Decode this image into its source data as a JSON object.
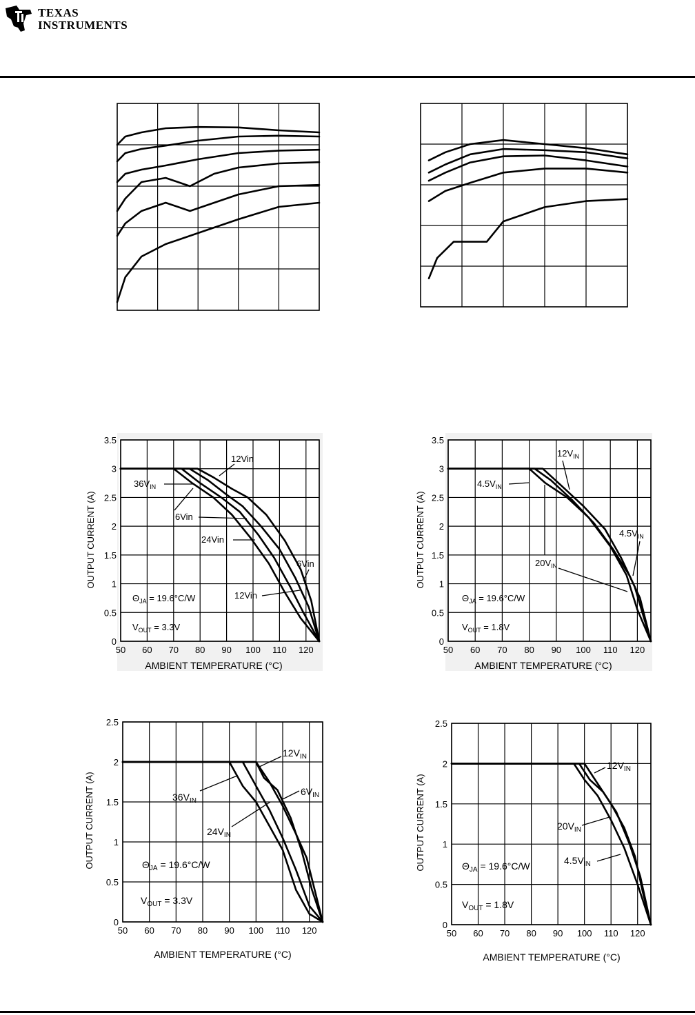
{
  "header": {
    "company_line1": "TEXAS",
    "company_line2": "INSTRUMENTS"
  },
  "efficiency_left": {
    "x_range": [
      0,
      2.5
    ],
    "y_range": [
      50,
      100
    ],
    "curves": [
      [
        [
          0.0,
          90
        ],
        [
          0.1,
          92
        ],
        [
          0.3,
          93
        ],
        [
          0.6,
          94
        ],
        [
          1.0,
          94.3
        ],
        [
          1.5,
          94.2
        ],
        [
          2.0,
          93.5
        ],
        [
          2.5,
          93
        ]
      ],
      [
        [
          0.0,
          86
        ],
        [
          0.1,
          88
        ],
        [
          0.3,
          89
        ],
        [
          0.6,
          89.8
        ],
        [
          1.0,
          91
        ],
        [
          1.5,
          92
        ],
        [
          2.0,
          92.2
        ],
        [
          2.5,
          92
        ]
      ],
      [
        [
          0.0,
          81
        ],
        [
          0.1,
          83
        ],
        [
          0.3,
          84
        ],
        [
          0.6,
          85
        ],
        [
          1.0,
          86.5
        ],
        [
          1.5,
          88
        ],
        [
          2.0,
          88.6
        ],
        [
          2.5,
          88.8
        ]
      ],
      [
        [
          0.0,
          74
        ],
        [
          0.1,
          77
        ],
        [
          0.3,
          81
        ],
        [
          0.6,
          82
        ],
        [
          0.9,
          80
        ],
        [
          1.2,
          83
        ],
        [
          1.5,
          84.5
        ],
        [
          2.0,
          85.5
        ],
        [
          2.5,
          85.8
        ]
      ],
      [
        [
          0.0,
          68
        ],
        [
          0.1,
          71
        ],
        [
          0.3,
          74
        ],
        [
          0.6,
          76
        ],
        [
          0.9,
          74
        ],
        [
          1.2,
          76
        ],
        [
          1.5,
          78
        ],
        [
          2.0,
          80
        ],
        [
          2.5,
          80.3
        ]
      ],
      [
        [
          0.0,
          52
        ],
        [
          0.1,
          58
        ],
        [
          0.3,
          63
        ],
        [
          0.6,
          66
        ],
        [
          0.9,
          68
        ],
        [
          1.2,
          70
        ],
        [
          1.5,
          72
        ],
        [
          2.0,
          75
        ],
        [
          2.5,
          76
        ]
      ]
    ]
  },
  "efficiency_right": {
    "x_range": [
      0,
      2.5
    ],
    "y_range": [
      50,
      100
    ],
    "curves": [
      [
        [
          0.1,
          86
        ],
        [
          0.3,
          88
        ],
        [
          0.6,
          90
        ],
        [
          1.0,
          91
        ],
        [
          1.5,
          90
        ],
        [
          2.0,
          89
        ],
        [
          2.5,
          87.5
        ]
      ],
      [
        [
          0.1,
          83
        ],
        [
          0.3,
          85
        ],
        [
          0.6,
          87.5
        ],
        [
          1.0,
          88.8
        ],
        [
          1.5,
          88.5
        ],
        [
          2.0,
          88
        ],
        [
          2.5,
          86.5
        ]
      ],
      [
        [
          0.1,
          81
        ],
        [
          0.3,
          83
        ],
        [
          0.6,
          85.5
        ],
        [
          1.0,
          87
        ],
        [
          1.5,
          87.2
        ],
        [
          2.0,
          86
        ],
        [
          2.5,
          84.5
        ]
      ],
      [
        [
          0.1,
          76
        ],
        [
          0.3,
          78.5
        ],
        [
          0.6,
          80.5
        ],
        [
          1.0,
          83
        ],
        [
          1.5,
          84
        ],
        [
          2.0,
          84
        ],
        [
          2.5,
          83
        ]
      ],
      [
        [
          0.1,
          57
        ],
        [
          0.2,
          62
        ],
        [
          0.4,
          66
        ],
        [
          0.8,
          66
        ],
        [
          1.0,
          71
        ],
        [
          1.5,
          74.5
        ],
        [
          2.0,
          76
        ],
        [
          2.5,
          76.5
        ]
      ]
    ]
  },
  "derating_3a_3v3": {
    "chart_data": {
      "type": "line",
      "xlabel": "AMBIENT TEMPERATURE (°C)",
      "ylabel": "OUTPUT CURRENT (A)",
      "xlim": [
        50,
        125
      ],
      "ylim": [
        0,
        3.5
      ],
      "x_ticks": [
        "50",
        "60",
        "70",
        "80",
        "90",
        "100",
        "110",
        "120"
      ],
      "y_ticks": [
        "0",
        "0.5",
        "1",
        "1.5",
        "2",
        "2.5",
        "3",
        "3.5"
      ],
      "series": [
        {
          "name": "12Vin",
          "points": [
            [
              50,
              3
            ],
            [
              79,
              3
            ],
            [
              85,
              2.85
            ],
            [
              92,
              2.65
            ],
            [
              98,
              2.5
            ],
            [
              105,
              2.2
            ],
            [
              112,
              1.75
            ],
            [
              118,
              1.25
            ],
            [
              122,
              0.7
            ],
            [
              125,
              0
            ]
          ]
        },
        {
          "name": "6Vin",
          "points": [
            [
              50,
              3
            ],
            [
              76,
              3
            ],
            [
              83,
              2.8
            ],
            [
              90,
              2.55
            ],
            [
              96,
              2.35
            ],
            [
              103,
              2.0
            ],
            [
              110,
              1.6
            ],
            [
              116,
              1.1
            ],
            [
              121,
              0.6
            ],
            [
              125,
              0
            ]
          ]
        },
        {
          "name": "24Vin",
          "points": [
            [
              50,
              3
            ],
            [
              73,
              3
            ],
            [
              80,
              2.75
            ],
            [
              88,
              2.5
            ],
            [
              95,
              2.25
            ],
            [
              102,
              1.85
            ],
            [
              108,
              1.45
            ],
            [
              114,
              0.95
            ],
            [
              119,
              0.5
            ],
            [
              125,
              0
            ]
          ]
        },
        {
          "name": "36VIN",
          "points": [
            [
              50,
              3
            ],
            [
              70,
              3
            ],
            [
              77,
              2.75
            ],
            [
              85,
              2.5
            ],
            [
              92,
              2.2
            ],
            [
              99,
              1.8
            ],
            [
              106,
              1.35
            ],
            [
              112,
              0.85
            ],
            [
              118,
              0.4
            ],
            [
              125,
              0
            ]
          ]
        }
      ]
    },
    "labels": {
      "l_12vin_top": "12Vin",
      "l_36vin_main": "36V",
      "l_36vin_sub": "IN",
      "l_6vin_mid": "6Vin",
      "l_24vin": "24Vin",
      "l_6vin_right": "6Vin",
      "l_12vin_bottom": "12Vin",
      "theta_main": "Θ",
      "theta_sub": "JA",
      "theta_value": " = 19.6°C/W",
      "vout_main": "V",
      "vout_sub": "OUT",
      "vout_value": " = 3.3V"
    }
  },
  "derating_3a_1v8": {
    "chart_data": {
      "type": "line",
      "xlabel": "AMBIENT TEMPERATURE (°C)",
      "ylabel": "OUTPUT CURRENT (A)",
      "xlim": [
        50,
        125
      ],
      "ylim": [
        0,
        3.5
      ],
      "x_ticks": [
        "50",
        "60",
        "70",
        "80",
        "90",
        "100",
        "110",
        "120"
      ],
      "y_ticks": [
        "0",
        "0.5",
        "1",
        "1.5",
        "2",
        "2.5",
        "3",
        "3.5"
      ],
      "series": [
        {
          "name": "12VIN",
          "points": [
            [
              50,
              3
            ],
            [
              85,
              3
            ],
            [
              92,
              2.7
            ],
            [
              100,
              2.35
            ],
            [
              108,
              1.95
            ],
            [
              114,
              1.45
            ],
            [
              119,
              0.95
            ],
            [
              125,
              0
            ]
          ]
        },
        {
          "name": "20VIN",
          "points": [
            [
              50,
              3
            ],
            [
              80,
              3
            ],
            [
              86,
              2.75
            ],
            [
              94,
              2.5
            ],
            [
              102,
              2.15
            ],
            [
              110,
              1.65
            ],
            [
              116,
              1.15
            ],
            [
              120,
              0.55
            ],
            [
              125,
              0
            ]
          ]
        },
        {
          "name": "4.5VIN",
          "points": [
            [
              50,
              3
            ],
            [
              82,
              3
            ],
            [
              88,
              2.8
            ],
            [
              96,
              2.45
            ],
            [
              104,
              2.05
            ],
            [
              111,
              1.6
            ],
            [
              117,
              1.15
            ],
            [
              121,
              0.75
            ],
            [
              125,
              0
            ]
          ]
        }
      ]
    },
    "labels": {
      "l_12vin_main": "12V",
      "l_12vin_sub": "IN",
      "l_45vin_left_main": "4.5V",
      "l_45vin_left_sub": "IN",
      "l_45vin_right_main": "4.5V",
      "l_45vin_right_sub": "IN",
      "l_20vin_main": "20V",
      "l_20vin_sub": "IN",
      "theta_main": "Θ",
      "theta_sub": "JA",
      "theta_value": " = 19.6°C/W",
      "vout_main": "V",
      "vout_sub": "OUT",
      "vout_value": " = 1.8V"
    }
  },
  "derating_2a_3v3": {
    "chart_data": {
      "type": "line",
      "xlabel": "AMBIENT TEMPERATURE (°C)",
      "ylabel": "OUTPUT CURRENT (A)",
      "xlim": [
        50,
        125
      ],
      "ylim": [
        0,
        2.5
      ],
      "x_ticks": [
        "50",
        "60",
        "70",
        "80",
        "90",
        "100",
        "110",
        "120"
      ],
      "y_ticks": [
        "0",
        "0.5",
        "1",
        "1.5",
        "2",
        "2.5"
      ],
      "series": [
        {
          "name": "12VIN",
          "points": [
            [
              50,
              2
            ],
            [
              100,
              2
            ],
            [
              105,
              1.75
            ],
            [
              110,
              1.45
            ],
            [
              115,
              1.1
            ],
            [
              119,
              0.8
            ],
            [
              122,
              0.4
            ],
            [
              125,
              0
            ]
          ]
        },
        {
          "name": "6VIN",
          "points": [
            [
              50,
              2
            ],
            [
              100,
              2
            ],
            [
              103,
              1.8
            ],
            [
              108,
              1.65
            ],
            [
              113,
              1.3
            ],
            [
              117,
              0.9
            ],
            [
              121,
              0.4
            ],
            [
              125,
              0
            ]
          ]
        },
        {
          "name": "24VIN",
          "points": [
            [
              50,
              2
            ],
            [
              95,
              2
            ],
            [
              100,
              1.7
            ],
            [
              105,
              1.4
            ],
            [
              110,
              1.05
            ],
            [
              115,
              0.65
            ],
            [
              120,
              0.2
            ],
            [
              125,
              0
            ]
          ]
        },
        {
          "name": "36VIN",
          "points": [
            [
              50,
              2
            ],
            [
              90,
              2
            ],
            [
              95,
              1.7
            ],
            [
              100,
              1.5
            ],
            [
              105,
              1.2
            ],
            [
              110,
              0.9
            ],
            [
              115,
              0.4
            ],
            [
              120,
              0.1
            ],
            [
              125,
              0
            ]
          ]
        }
      ]
    },
    "labels": {
      "l_12vin_main": "12V",
      "l_12vin_sub": "IN",
      "l_36vin_main": "36V",
      "l_36vin_sub": "IN",
      "l_6vin_main": "6V",
      "l_6vin_sub": "IN",
      "l_24vin_main": "24V",
      "l_24vin_sub": "IN",
      "theta_main": "Θ",
      "theta_sub": "JA",
      "theta_value": " = 19.6°C/W",
      "vout_main": "V",
      "vout_sub": "OUT",
      "vout_value": " = 3.3V"
    }
  },
  "derating_2a_1v8": {
    "chart_data": {
      "type": "line",
      "xlabel": "AMBIENT TEMPERATURE (°C)",
      "ylabel": "OUTPUT CURRENT (A)",
      "xlim": [
        50,
        125
      ],
      "ylim": [
        0,
        2.5
      ],
      "x_ticks": [
        "50",
        "60",
        "70",
        "80",
        "90",
        "100",
        "110",
        "120"
      ],
      "y_ticks": [
        "0",
        "0.5",
        "1",
        "1.5",
        "2",
        "2.5"
      ],
      "series": [
        {
          "name": "12VIN",
          "points": [
            [
              50,
              2
            ],
            [
              100,
              2
            ],
            [
              105,
              1.75
            ],
            [
              110,
              1.5
            ],
            [
              115,
              1.2
            ],
            [
              119,
              0.85
            ],
            [
              122,
              0.4
            ],
            [
              125,
              0
            ]
          ]
        },
        {
          "name": "20VIN",
          "points": [
            [
              50,
              2
            ],
            [
              96,
              2
            ],
            [
              100,
              1.8
            ],
            [
              105,
              1.6
            ],
            [
              110,
              1.3
            ],
            [
              115,
              0.95
            ],
            [
              120,
              0.5
            ],
            [
              125,
              0
            ]
          ]
        },
        {
          "name": "4.5VIN",
          "points": [
            [
              50,
              2
            ],
            [
              98,
              2
            ],
            [
              102,
              1.8
            ],
            [
              107,
              1.65
            ],
            [
              112,
              1.4
            ],
            [
              117,
              1.0
            ],
            [
              121,
              0.6
            ],
            [
              125,
              0
            ]
          ]
        }
      ]
    },
    "labels": {
      "l_12vin_main": "12V",
      "l_12vin_sub": "IN",
      "l_20vin_main": "20V",
      "l_20vin_sub": "IN",
      "l_45vin_main": "4.5V",
      "l_45vin_sub": "IN",
      "theta_main": "Θ",
      "theta_sub": "JA",
      "theta_value": " = 19.6°C/W",
      "vout_main": "V",
      "vout_sub": "OUT",
      "vout_value": " = 1.8V"
    }
  }
}
